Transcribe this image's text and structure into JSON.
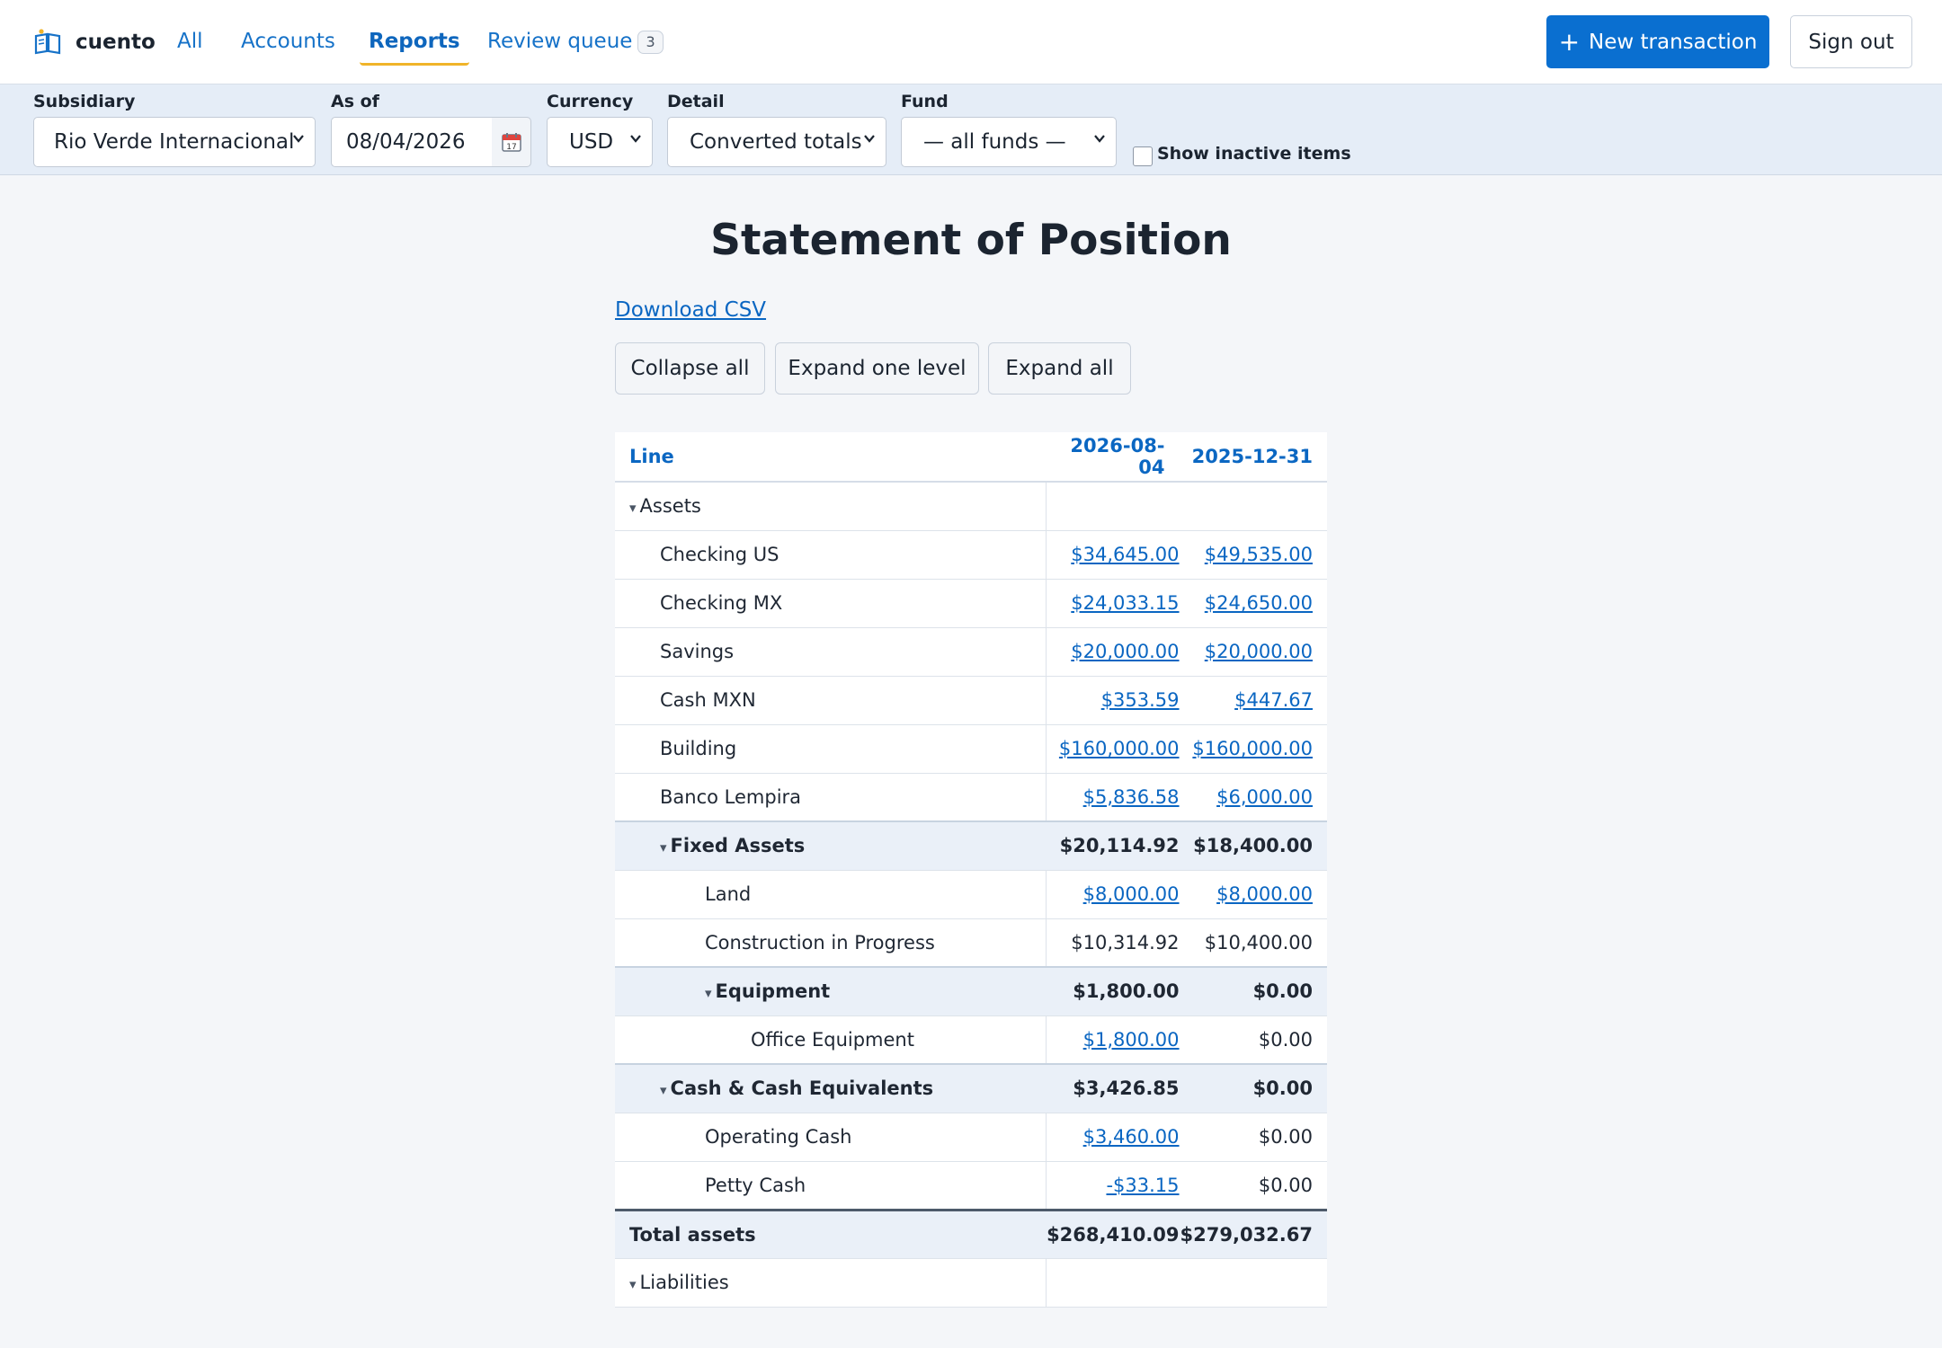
{
  "nav": {
    "brand": "cuento",
    "links": [
      {
        "label": "All"
      },
      {
        "label": "Accounts"
      },
      {
        "label": "Reports"
      },
      {
        "label": "Review queue",
        "badge": "3"
      }
    ],
    "new_transaction": "New transaction",
    "sign_out": "Sign out"
  },
  "filters": {
    "subsidiary": {
      "label": "Subsidiary",
      "value": "Rio Verde Internacional"
    },
    "as_of": {
      "label": "As of",
      "value": "08/04/2026"
    },
    "currency": {
      "label": "Currency",
      "value": "USD"
    },
    "detail": {
      "label": "Detail",
      "value": "Converted totals"
    },
    "fund": {
      "label": "Fund",
      "value": "— all funds —"
    },
    "show_inactive": {
      "label": "Show inactive items",
      "checked": false
    }
  },
  "report": {
    "title": "Statement of Position",
    "download_csv": "Download CSV",
    "collapse_all": "Collapse all",
    "expand_one": "Expand one level",
    "expand_all": "Expand all",
    "columns": [
      "Line",
      "2026-08-04",
      "2025-12-31"
    ],
    "rows": [
      {
        "label": "Assets",
        "kind": "section",
        "level": 0,
        "v1": "",
        "v2": "",
        "link1": false,
        "link2": false
      },
      {
        "label": "Checking US",
        "kind": "account",
        "level": 1,
        "v1": "$34,645.00",
        "v2": "$49,535.00",
        "link1": true,
        "link2": true
      },
      {
        "label": "Checking MX",
        "kind": "account",
        "level": 1,
        "v1": "$24,033.15",
        "v2": "$24,650.00",
        "link1": true,
        "link2": true
      },
      {
        "label": "Savings",
        "kind": "account",
        "level": 1,
        "v1": "$20,000.00",
        "v2": "$20,000.00",
        "link1": true,
        "link2": true
      },
      {
        "label": "Cash MXN",
        "kind": "account",
        "level": 1,
        "v1": "$353.59",
        "v2": "$447.67",
        "link1": true,
        "link2": true
      },
      {
        "label": "Building",
        "kind": "account",
        "level": 1,
        "v1": "$160,000.00",
        "v2": "$160,000.00",
        "link1": true,
        "link2": true
      },
      {
        "label": "Banco Lempira",
        "kind": "account",
        "level": 1,
        "v1": "$5,836.58",
        "v2": "$6,000.00",
        "link1": true,
        "link2": true
      },
      {
        "label": "Fixed Assets",
        "kind": "group",
        "level": 1,
        "v1": "$20,114.92",
        "v2": "$18,400.00",
        "link1": false,
        "link2": false
      },
      {
        "label": "Land",
        "kind": "account",
        "level": 2,
        "v1": "$8,000.00",
        "v2": "$8,000.00",
        "link1": true,
        "link2": true
      },
      {
        "label": "Construction in Progress",
        "kind": "account",
        "level": 2,
        "v1": "$10,314.92",
        "v2": "$10,400.00",
        "link1": false,
        "link2": false
      },
      {
        "label": "Equipment",
        "kind": "group",
        "level": 2,
        "v1": "$1,800.00",
        "v2": "$0.00",
        "link1": false,
        "link2": false
      },
      {
        "label": "Office Equipment",
        "kind": "account",
        "level": 3,
        "v1": "$1,800.00",
        "v2": "$0.00",
        "link1": true,
        "link2": false
      },
      {
        "label": "Cash & Cash Equivalents",
        "kind": "group",
        "level": 1,
        "v1": "$3,426.85",
        "v2": "$0.00",
        "link1": false,
        "link2": false
      },
      {
        "label": "Operating Cash",
        "kind": "account",
        "level": 2,
        "v1": "$3,460.00",
        "v2": "$0.00",
        "link1": true,
        "link2": false
      },
      {
        "label": "Petty Cash",
        "kind": "account",
        "level": 2,
        "v1": "-$33.15",
        "v2": "$0.00",
        "link1": true,
        "link2": false
      },
      {
        "label": "Total assets",
        "kind": "total",
        "level": 0,
        "v1": "$268,410.09",
        "v2": "$279,032.67",
        "link1": false,
        "link2": false
      },
      {
        "label": "Liabilities",
        "kind": "section",
        "level": 0,
        "v1": "",
        "v2": "",
        "link1": false,
        "link2": false
      }
    ]
  },
  "colors": {
    "accent": "#0a6fd0",
    "link": "#0a66c2",
    "nav_underline": "#f0b429",
    "group_bg": "#eaf0f8"
  },
  "icons": {
    "brand": "book-icon",
    "calendar": "calendar-icon",
    "select": "chevron-down-icon",
    "toggle": "caret-down-icon"
  }
}
